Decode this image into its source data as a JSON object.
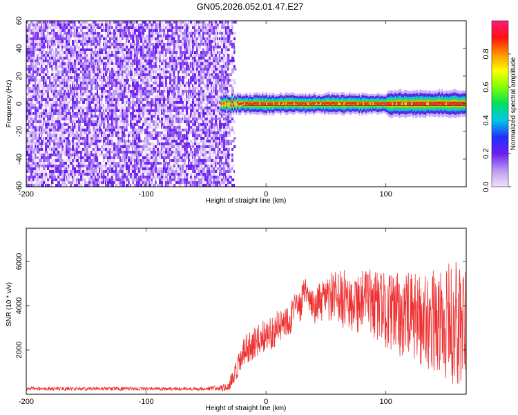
{
  "title": "GN05.2026.052.01.47.E27",
  "chart_data": [
    {
      "type": "heatmap",
      "xlabel": "Height of straight line (km)",
      "ylabel": "Frequency (Hz)",
      "xlim": [
        -200,
        167
      ],
      "ylim": [
        -60,
        60
      ],
      "xticks": [
        -200,
        -100,
        0,
        100
      ],
      "yticks": [
        -60,
        -40,
        -20,
        0,
        20,
        40,
        60
      ],
      "colorbar": {
        "label": "Normalized spectral amplitude",
        "range": [
          0,
          1
        ],
        "ticks": [
          "0.0",
          "0.2",
          "0.4",
          "0.6",
          "0.8"
        ],
        "colors": [
          "#f2e4fa",
          "#b898f0",
          "#6a1ef0",
          "#2030ff",
          "#00c8e8",
          "#00e060",
          "#80ff00",
          "#ffff00",
          "#ff9000",
          "#ff1010",
          "#ff1a80"
        ]
      },
      "regions": [
        {
          "desc": "broadband noise",
          "x_range": [
            -200,
            -32
          ],
          "freq_range": [
            -60,
            60
          ]
        },
        {
          "desc": "narrow carrier signal",
          "x_range": [
            -38,
            167
          ],
          "center_freq": 0,
          "width_hz": 6
        }
      ]
    },
    {
      "type": "line",
      "xlabel": "Height of straight line (km)",
      "ylabel": "SNR (10 * v/v)",
      "xlim": [
        -200,
        167
      ],
      "ylim": [
        0,
        7500
      ],
      "xticks": [
        -200,
        -100,
        0,
        100
      ],
      "yticks": [
        2000,
        4000,
        6000
      ],
      "color": "#ee3030",
      "series": [
        {
          "name": "SNR",
          "x": [
            -200,
            -150,
            -100,
            -50,
            -32,
            -25,
            -20,
            -15,
            -10,
            -5,
            0,
            5,
            10,
            20,
            30,
            33,
            36,
            40,
            50,
            55,
            60,
            70,
            80,
            90,
            100,
            110,
            120,
            130,
            140,
            150,
            160,
            167
          ],
          "y": [
            250,
            250,
            250,
            250,
            300,
            900,
            1700,
            2100,
            2300,
            2500,
            2700,
            2800,
            3000,
            3500,
            4100,
            4900,
            4100,
            4000,
            4250,
            4350,
            4300,
            4250,
            4200,
            4100,
            3800,
            3600,
            3500,
            3400,
            3300,
            3200,
            3100,
            3050
          ],
          "amp": [
            80,
            80,
            80,
            80,
            200,
            600,
            700,
            700,
            700,
            750,
            750,
            750,
            800,
            800,
            800,
            600,
            600,
            800,
            1000,
            1200,
            1300,
            1400,
            1500,
            1600,
            1700,
            1900,
            2000,
            2100,
            2300,
            2600,
            3200,
            3300
          ]
        }
      ]
    }
  ]
}
